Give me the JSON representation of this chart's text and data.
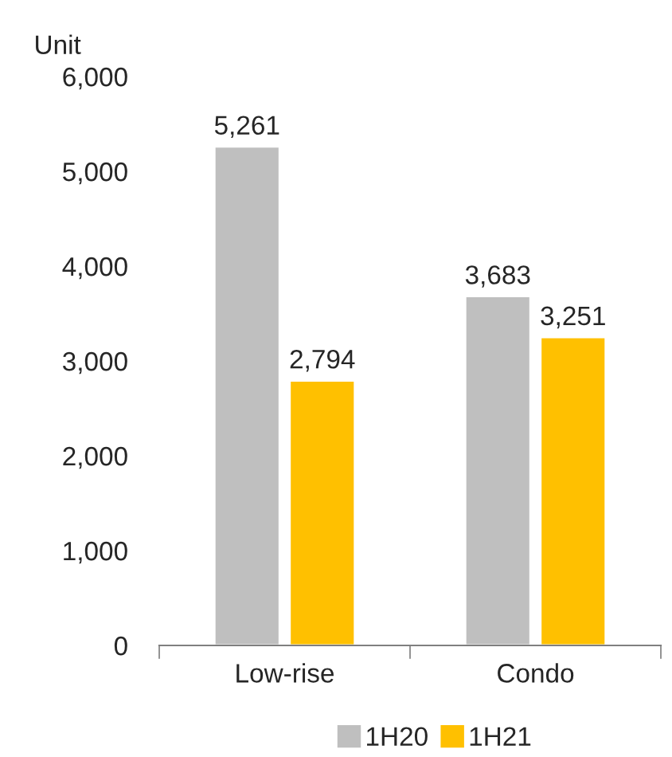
{
  "chart_data": {
    "type": "bar",
    "ylabel": "Unit",
    "categories": [
      "Low-rise",
      "Condo"
    ],
    "series": [
      {
        "name": "1H20",
        "color": "#bfbfbf",
        "values": [
          5261,
          3683
        ],
        "value_labels": [
          "5,261",
          "3,683"
        ]
      },
      {
        "name": "1H21",
        "color": "#ffc000",
        "values": [
          2794,
          3251
        ],
        "value_labels": [
          "2,794",
          "3,251"
        ]
      }
    ],
    "ylim": [
      0,
      6000
    ],
    "yticks": [
      {
        "value": 0,
        "label": "0"
      },
      {
        "value": 1000,
        "label": "1,000"
      },
      {
        "value": 2000,
        "label": "2,000"
      },
      {
        "value": 3000,
        "label": "3,000"
      },
      {
        "value": 4000,
        "label": "4,000"
      },
      {
        "value": 5000,
        "label": "5,000"
      },
      {
        "value": 6000,
        "label": "6,000"
      }
    ],
    "grid": false,
    "legend": "bottom"
  }
}
